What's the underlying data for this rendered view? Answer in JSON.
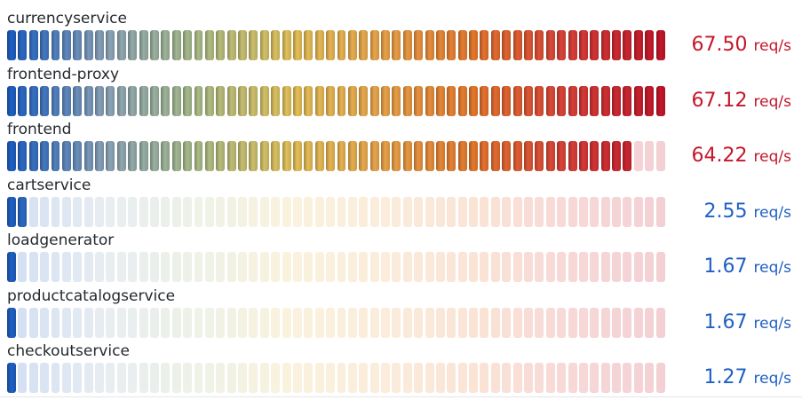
{
  "chart_data": {
    "type": "bar",
    "style": "lcd-gauge",
    "unit": "req/s",
    "min": 0,
    "max": 67.5,
    "cell_count": 60,
    "orientation": "horizontal",
    "color_scale": [
      "#1f60c4",
      "#8aa3b9",
      "#a9bc88",
      "#e3c15a",
      "#e9a44a",
      "#e6772d",
      "#d8403a",
      "#c4162a"
    ],
    "categories": [
      "currencyservice",
      "frontend-proxy",
      "frontend",
      "cartservice",
      "loadgenerator",
      "productcatalogservice",
      "checkoutservice"
    ],
    "values": [
      67.5,
      67.12,
      64.22,
      2.55,
      1.67,
      1.67,
      1.27
    ],
    "value_labels": [
      "67.50",
      "67.12",
      "64.22",
      "2.55",
      "1.67",
      "1.67",
      "1.27"
    ],
    "value_colors": [
      "#c4162a",
      "#c4162a",
      "#c4162a",
      "#1f60c4",
      "#1f60c4",
      "#1f60c4",
      "#1f60c4"
    ]
  }
}
